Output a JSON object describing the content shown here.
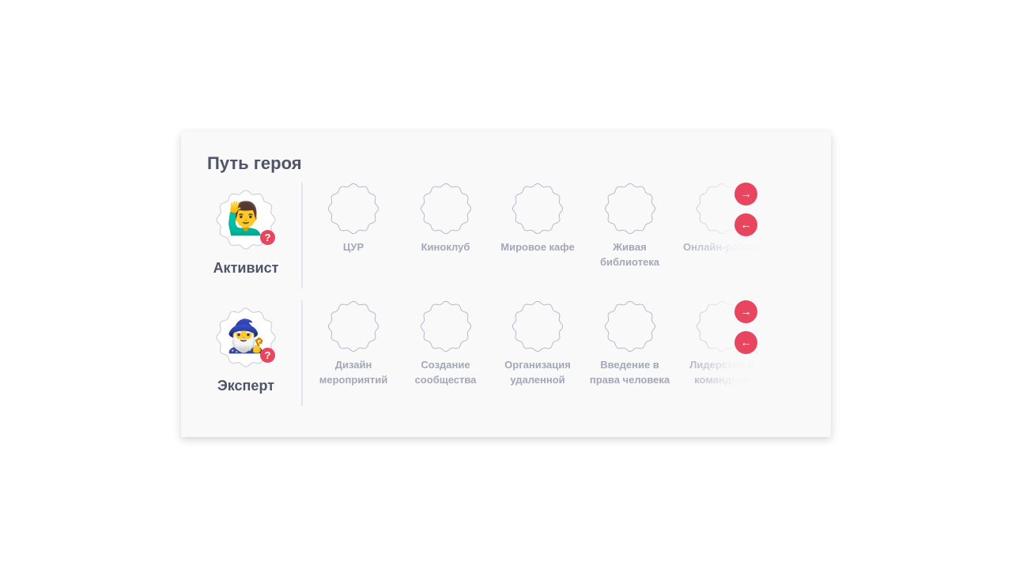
{
  "title": "Путь героя",
  "accent": "#e8455f",
  "rows": [
    {
      "hero": {
        "name": "Активист",
        "emoji": "🙋‍♂️",
        "help": "?"
      },
      "items": [
        "ЦУР",
        "Киноклуб",
        "Мировое кафе",
        "Живая библиотека",
        "Онлайн-работа"
      ],
      "next": "→",
      "prev": "←"
    },
    {
      "hero": {
        "name": "Эксперт",
        "emoji": "🧙‍♂️",
        "help": "?"
      },
      "items": [
        "Дизайн мероприятий",
        "Создание сообщества",
        "Организация удаленной",
        "Введение в права человека",
        "Лидерство и командная"
      ],
      "next": "→",
      "prev": "←"
    }
  ]
}
